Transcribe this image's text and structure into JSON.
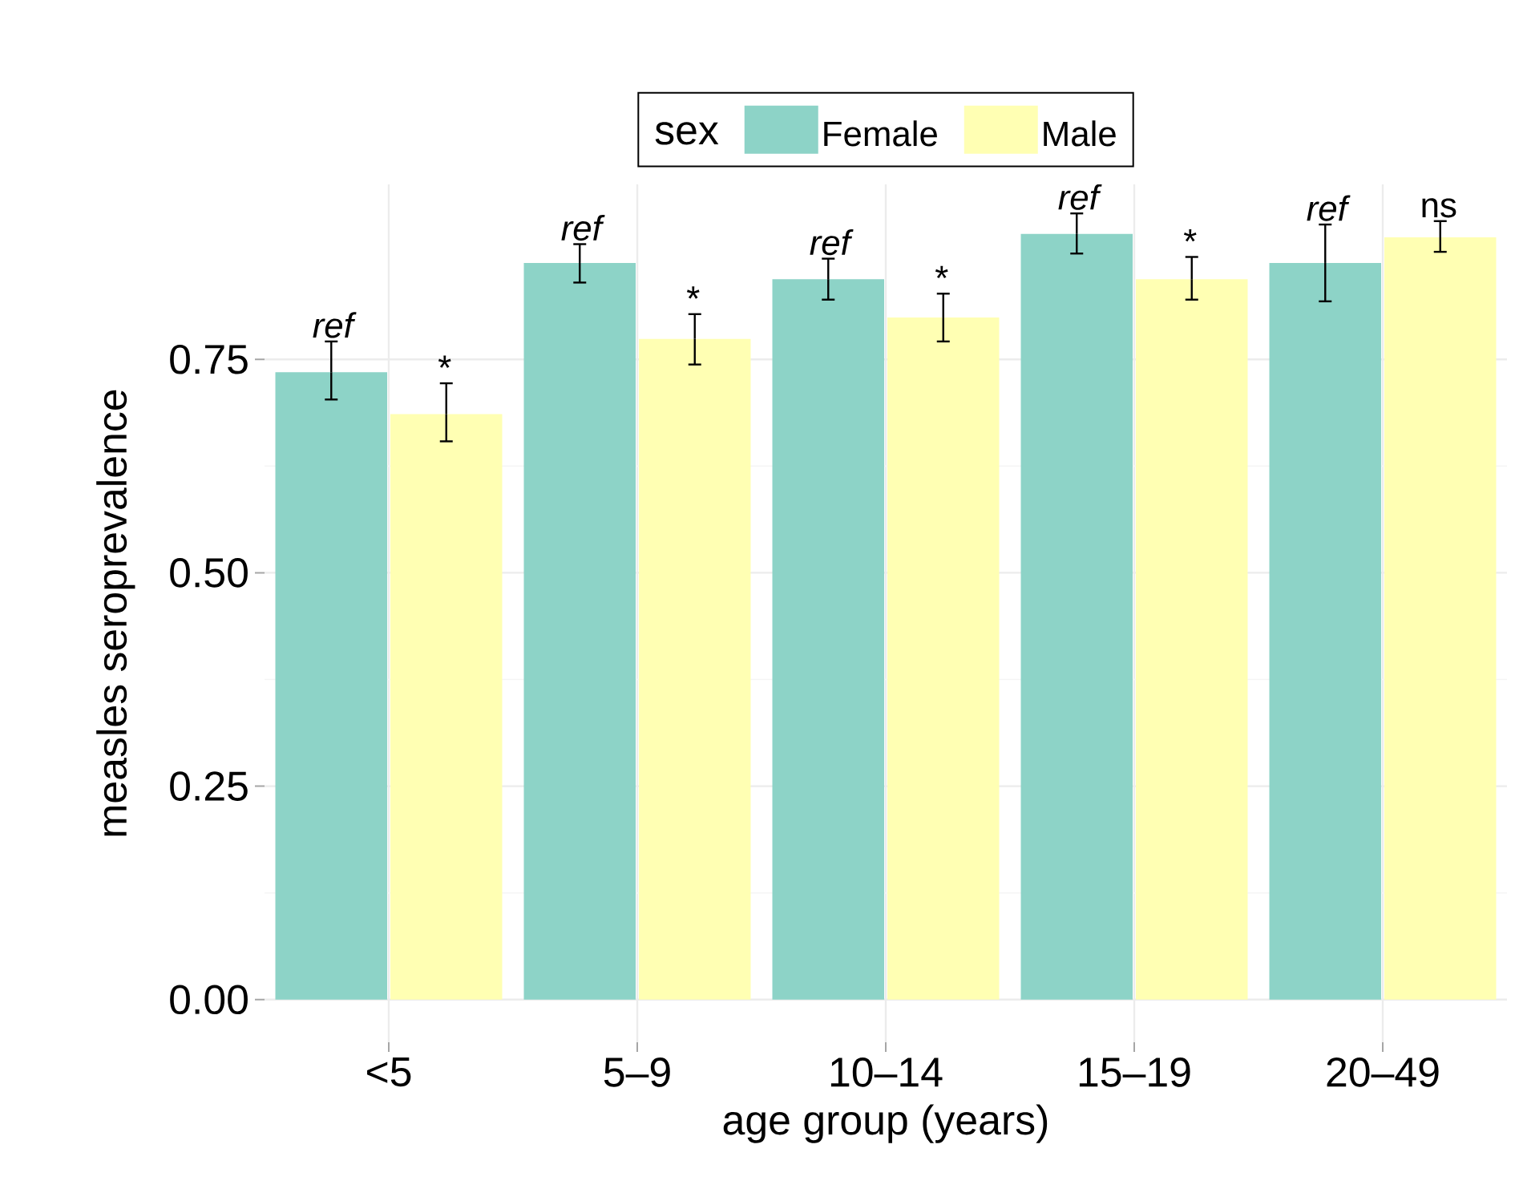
{
  "chart_data": {
    "type": "bar",
    "xlabel": "age group (years)",
    "ylabel": "measles seroprevalence",
    "legend_title": "sex",
    "categories": [
      "<5",
      "5–9",
      "10–14",
      "15–19",
      "20–49"
    ],
    "series": [
      {
        "name": "Female",
        "color": "#8dd3c7",
        "values": [
          0.735,
          0.863,
          0.844,
          0.897,
          0.863
        ],
        "errors": [
          [
            0.703,
            0.771
          ],
          [
            0.84,
            0.885
          ],
          [
            0.82,
            0.868
          ],
          [
            0.874,
            0.921
          ],
          [
            0.818,
            0.908
          ]
        ]
      },
      {
        "name": "Male",
        "color": "#ffffb3",
        "values": [
          0.686,
          0.774,
          0.799,
          0.844,
          0.893
        ],
        "errors": [
          [
            0.654,
            0.722
          ],
          [
            0.744,
            0.803
          ],
          [
            0.771,
            0.827
          ],
          [
            0.82,
            0.87
          ],
          [
            0.876,
            0.912
          ]
        ]
      }
    ],
    "ylim": [
      -0.05,
      0.955
    ],
    "yticks": [
      {
        "value": 0,
        "label": "0.00"
      },
      {
        "value": 0.25,
        "label": "0.25"
      },
      {
        "value": 0.5,
        "label": "0.50"
      },
      {
        "value": 0.75,
        "label": "0.75"
      }
    ],
    "grid": true,
    "legend": "top",
    "annotations": [
      "ref",
      "*",
      "ref",
      "*",
      "ref",
      "*",
      "ref",
      "*",
      "ref",
      "ns"
    ]
  }
}
